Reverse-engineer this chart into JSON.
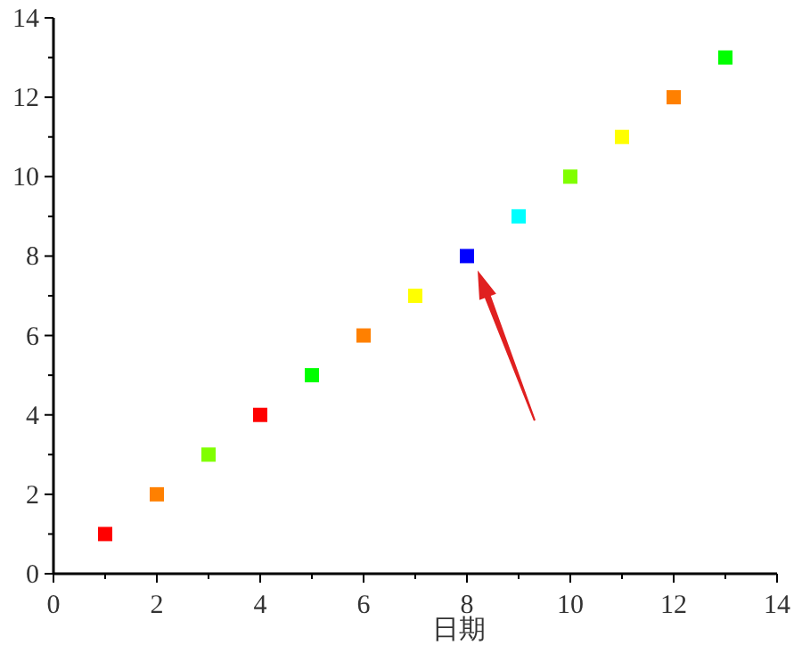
{
  "chart_data": {
    "type": "scatter",
    "xlabel": "日期",
    "marker": "square",
    "grid": false,
    "x": [
      1,
      2,
      3,
      4,
      5,
      6,
      7,
      8,
      9,
      10,
      11,
      12,
      13
    ],
    "values": [
      1,
      2,
      3,
      4,
      5,
      6,
      7,
      8,
      9,
      10,
      11,
      12,
      13
    ],
    "colors": [
      "#ff0000",
      "#ff8000",
      "#80ff00",
      "#ff0000",
      "#00ff00",
      "#ff8000",
      "#ffff00",
      "#0000ff",
      "#00ffff",
      "#80ff00",
      "#ffff00",
      "#ff8000",
      "#00ff00"
    ],
    "xlim": [
      0,
      14
    ],
    "ylim": [
      0,
      14
    ],
    "xticks": [
      0,
      {
        "value": 1,
        "label": null
      },
      2,
      {
        "value": 3,
        "label": null
      },
      4,
      {
        "value": 5,
        "label": null
      },
      6,
      {
        "value": 7,
        "label": null
      },
      8,
      {
        "value": 9,
        "label": null
      },
      10,
      {
        "value": 11,
        "label": null
      },
      12,
      {
        "value": 13,
        "label": null
      },
      14
    ],
    "yticks": [
      0,
      {
        "value": 1,
        "label": null
      },
      2,
      {
        "value": 3,
        "label": null
      },
      4,
      {
        "value": 5,
        "label": null
      },
      6,
      {
        "value": 7,
        "label": null
      },
      8,
      {
        "value": 9,
        "label": null
      },
      10,
      {
        "value": 11,
        "label": null
      },
      12,
      {
        "value": 13,
        "label": null
      },
      14
    ]
  }
}
